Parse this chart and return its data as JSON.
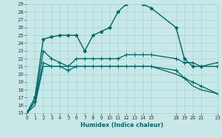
{
  "xlabel": "Humidex (Indice chaleur)",
  "bg_color": "#c8e8e8",
  "grid_color": "#a8d0d0",
  "line_color": "#006868",
  "xlim": [
    0,
    23
  ],
  "ylim": [
    15,
    29
  ],
  "xtick_labels": [
    "0",
    "1",
    "2",
    "3",
    "4",
    "5",
    "6",
    "7",
    "8",
    "9",
    "10",
    "11",
    "12",
    "13",
    "14",
    "15",
    "18",
    "19",
    "20",
    "21",
    "23"
  ],
  "xtick_pos": [
    0,
    1,
    2,
    3,
    4,
    5,
    6,
    7,
    8,
    9,
    10,
    11,
    12,
    13,
    14,
    15,
    18,
    19,
    20,
    21,
    23
  ],
  "yticks": [
    15,
    16,
    17,
    18,
    19,
    20,
    21,
    22,
    23,
    24,
    25,
    26,
    27,
    28,
    29
  ],
  "series": [
    {
      "x": [
        0,
        1,
        2,
        3,
        4,
        5,
        6,
        7,
        8,
        9,
        10,
        11,
        12,
        13,
        14,
        15,
        18,
        19,
        20,
        21,
        23
      ],
      "y": [
        15.0,
        17.0,
        24.5,
        24.8,
        25.0,
        25.0,
        25.0,
        23.0,
        25.0,
        25.5,
        26.0,
        28.0,
        29.0,
        29.3,
        29.0,
        28.5,
        26.0,
        22.0,
        21.0,
        21.0,
        21.0
      ],
      "marker": "*",
      "markersize": 3.5,
      "linewidth": 1.1
    },
    {
      "x": [
        0,
        1,
        2,
        3,
        4,
        5,
        6,
        7,
        8,
        9,
        10,
        11,
        12,
        13,
        14,
        15,
        18,
        19,
        20,
        21,
        23
      ],
      "y": [
        15.0,
        16.5,
        23.0,
        22.0,
        21.5,
        21.0,
        22.0,
        22.0,
        22.0,
        22.0,
        22.0,
        22.0,
        22.5,
        22.5,
        22.5,
        22.5,
        22.0,
        21.5,
        21.5,
        21.0,
        21.5
      ],
      "marker": "+",
      "markersize": 4,
      "linewidth": 1.0
    },
    {
      "x": [
        0,
        1,
        2,
        3,
        4,
        5,
        6,
        7,
        8,
        9,
        10,
        11,
        12,
        13,
        14,
        15,
        18,
        19,
        20,
        21,
        23
      ],
      "y": [
        15.0,
        16.5,
        21.5,
        21.0,
        21.0,
        20.5,
        21.0,
        21.0,
        21.0,
        21.0,
        21.0,
        21.0,
        21.0,
        21.0,
        21.0,
        21.0,
        20.5,
        19.5,
        19.0,
        18.5,
        17.5
      ],
      "marker": "+",
      "markersize": 4,
      "linewidth": 1.0
    },
    {
      "x": [
        0,
        1,
        2,
        3,
        4,
        5,
        6,
        7,
        8,
        9,
        10,
        11,
        12,
        13,
        14,
        15,
        18,
        19,
        20,
        21,
        23
      ],
      "y": [
        15.0,
        16.0,
        21.0,
        21.0,
        21.0,
        21.0,
        21.0,
        21.0,
        21.0,
        21.0,
        21.0,
        21.0,
        21.0,
        21.0,
        21.0,
        21.0,
        20.0,
        19.5,
        18.5,
        18.0,
        17.5
      ],
      "marker": null,
      "markersize": 0,
      "linewidth": 1.0
    }
  ]
}
